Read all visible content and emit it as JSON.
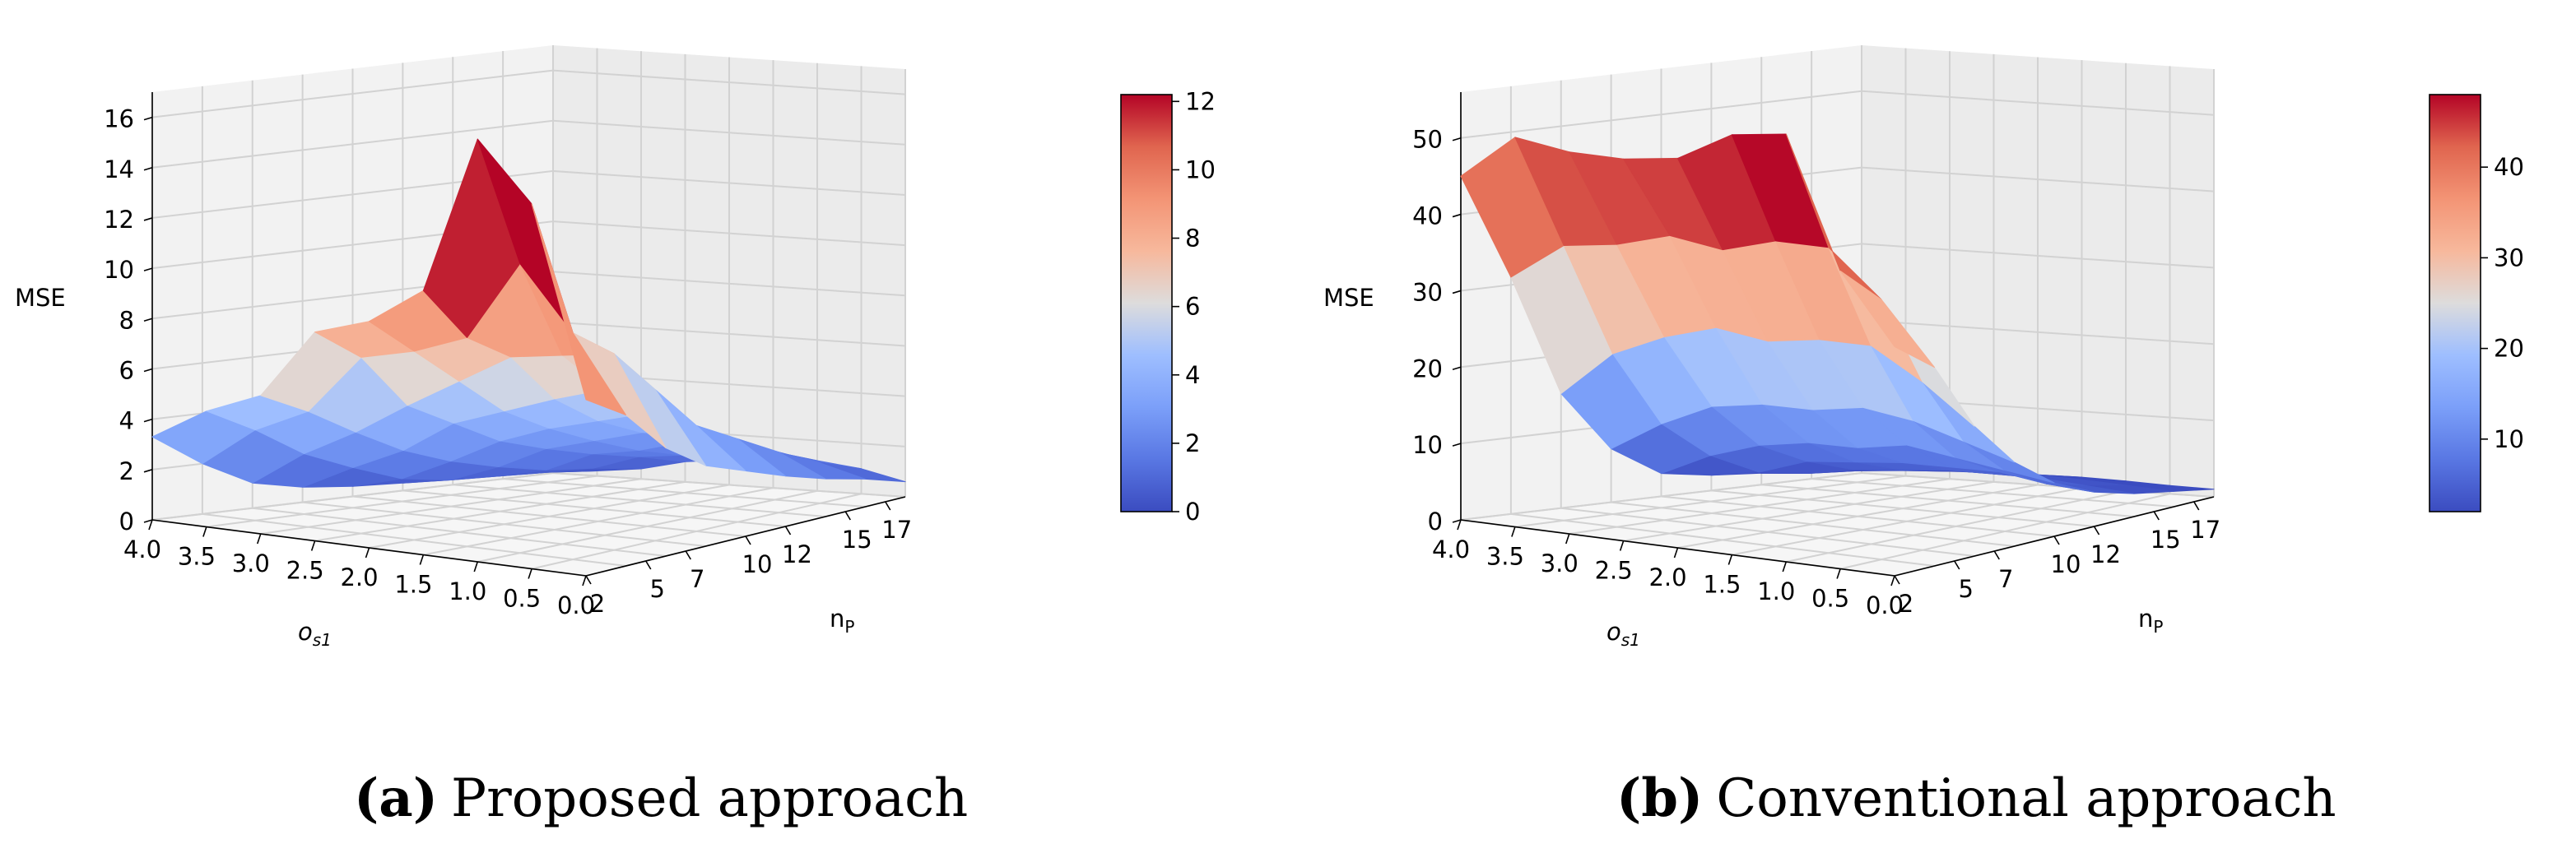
{
  "chart_data": [
    {
      "type": "surface3d",
      "panel_label": "a",
      "caption": "Proposed approach",
      "zlabel": "MSE",
      "xlabel": "n_P",
      "ylabel": "o_s1",
      "x_ticks": [
        "2",
        "5",
        "7",
        "10",
        "12",
        "15",
        "17"
      ],
      "y_ticks": [
        "4.0",
        "3.5",
        "3.0",
        "2.5",
        "2.0",
        "1.5",
        "1.0",
        "0.5",
        "0.0"
      ],
      "z_ticks": [
        "0",
        "2",
        "4",
        "6",
        "8",
        "10",
        "12",
        "14",
        "16"
      ],
      "zlim": [
        0,
        17
      ],
      "colorbar": {
        "min": 0,
        "max": 12.2,
        "ticks": [
          "0",
          "2",
          "4",
          "6",
          "8",
          "10",
          "12"
        ]
      },
      "x": [
        2,
        4,
        6,
        8,
        10,
        12,
        14,
        16,
        18
      ],
      "y": [
        4.0,
        3.5,
        3.0,
        2.5,
        2.0,
        1.5,
        1.0,
        0.5,
        0.0
      ],
      "z": [
        [
          3.3,
          2.0,
          1.0,
          0.6,
          0.4,
          0.3,
          0.3,
          0.2,
          0.1
        ],
        [
          4.6,
          3.6,
          2.4,
          1.6,
          0.9,
          0.6,
          0.5,
          0.4,
          0.2
        ],
        [
          5.5,
          4.6,
          3.5,
          2.5,
          1.8,
          1.3,
          0.9,
          0.7,
          0.4
        ],
        [
          8.3,
          7.0,
          4.8,
          3.8,
          2.8,
          2.2,
          1.7,
          1.3,
          0.8
        ],
        [
          9.0,
          7.5,
          6.0,
          4.5,
          3.5,
          2.7,
          2.0,
          1.5,
          1.0
        ],
        [
          10.5,
          8.3,
          7.2,
          5.2,
          4.0,
          3.2,
          2.5,
          1.7,
          1.1
        ],
        [
          16.8,
          11.5,
          7.5,
          5.8,
          4.5,
          3.4,
          2.7,
          1.9,
          1.2
        ],
        [
          14.5,
          9.0,
          7.8,
          6.0,
          4.2,
          3.3,
          2.4,
          1.6,
          1.0
        ],
        [
          7.0,
          6.0,
          4.3,
          3.2,
          2.6,
          2.0,
          1.5,
          1.1,
          0.6
        ]
      ]
    },
    {
      "type": "surface3d",
      "panel_label": "b",
      "caption": "Conventional approach",
      "zlabel": "MSE",
      "xlabel": "n_P",
      "ylabel": "o_s1",
      "x_ticks": [
        "2",
        "5",
        "7",
        "10",
        "12",
        "15",
        "17"
      ],
      "y_ticks": [
        "4.0",
        "3.5",
        "3.0",
        "2.5",
        "2.0",
        "1.5",
        "1.0",
        "0.5",
        "0.0"
      ],
      "z_ticks": [
        "0",
        "10",
        "20",
        "30",
        "40",
        "50"
      ],
      "zlim": [
        0,
        56
      ],
      "colorbar": {
        "min": 2,
        "max": 48,
        "ticks": [
          "10",
          "20",
          "30",
          "40"
        ]
      },
      "x": [
        2,
        4,
        6,
        8,
        10,
        12,
        14,
        16,
        18
      ],
      "y": [
        4.0,
        3.5,
        3.0,
        2.5,
        2.0,
        1.5,
        1.0,
        0.5,
        0.0
      ],
      "z": [
        [
          45,
          31,
          15,
          7,
          3,
          2,
          1.5,
          1,
          0.5
        ],
        [
          51,
          36,
          21,
          11,
          6,
          3,
          2,
          1.5,
          0.8
        ],
        [
          50,
          37,
          24,
          14,
          8,
          5,
          3,
          2,
          1
        ],
        [
          50,
          39,
          26,
          15,
          9,
          5.5,
          3.5,
          2.5,
          1.2
        ],
        [
          51,
          38,
          25,
          15,
          9,
          6,
          4,
          2.5,
          1.3
        ],
        [
          55,
          40,
          26,
          16,
          10,
          6,
          4,
          2.8,
          1.4
        ],
        [
          56,
          40,
          26,
          15,
          9,
          6,
          4,
          2.6,
          1.3
        ],
        [
          39,
          34,
          22,
          13,
          8,
          5,
          3.5,
          2.3,
          1.1
        ],
        [
          30,
          26,
          17,
          11,
          7,
          4.5,
          3,
          2,
          1
        ]
      ]
    }
  ]
}
